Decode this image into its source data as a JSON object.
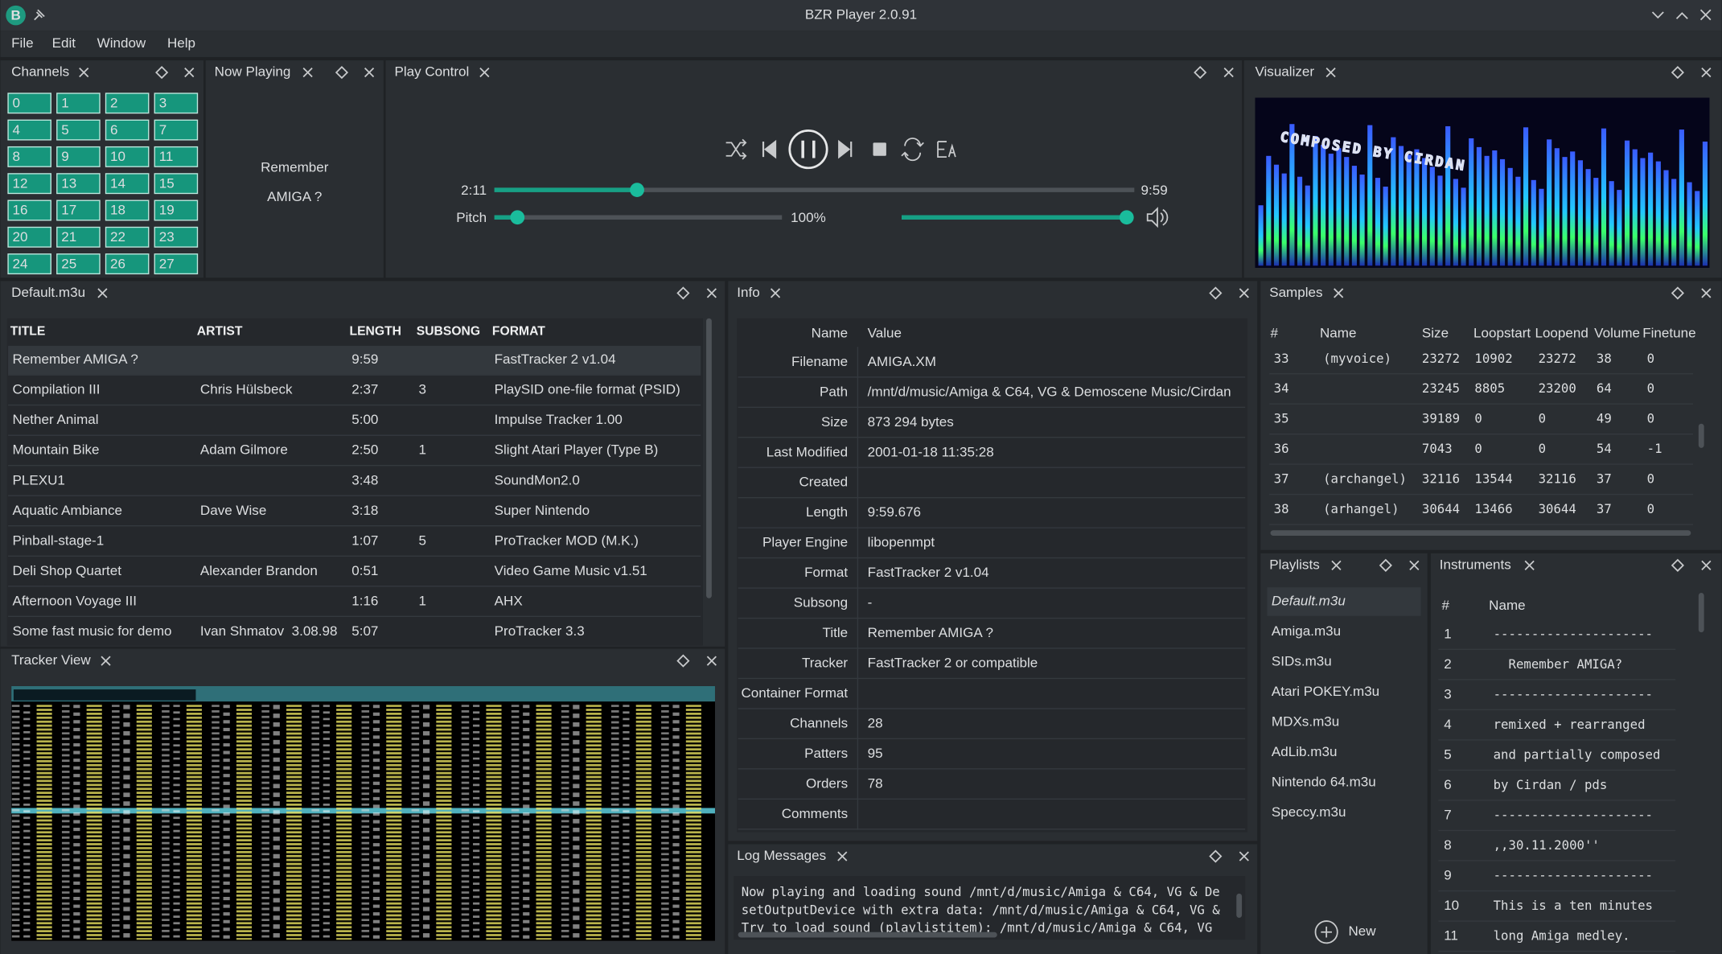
{
  "window": {
    "logo": "B",
    "title": "BZR Player 2.0.91"
  },
  "menu": [
    "File",
    "Edit",
    "Window",
    "Help"
  ],
  "channels": {
    "title": "Channels",
    "buttons": [
      "0",
      "1",
      "2",
      "3",
      "4",
      "5",
      "6",
      "7",
      "8",
      "9",
      "10",
      "11",
      "12",
      "13",
      "14",
      "15",
      "16",
      "17",
      "18",
      "19",
      "20",
      "21",
      "22",
      "23",
      "24",
      "25",
      "26",
      "27"
    ]
  },
  "now_playing": {
    "title": "Now Playing",
    "lines": [
      "Remember",
      "AMIGA ?"
    ]
  },
  "play_control": {
    "title": "Play Control",
    "elapsed": "2:11",
    "total": "9:59",
    "pitch_label": "Pitch",
    "pitch": "100%"
  },
  "visualizer": {
    "title": "Visualizer",
    "text": "COMPOSED BY CIRDAN"
  },
  "playlist": {
    "title": "Default.m3u",
    "columns": [
      "TITLE",
      "ARTIST",
      "LENGTH",
      "SUBSONG",
      "FORMAT"
    ],
    "rows": [
      [
        "Remember AMIGA ?",
        null,
        "9:59",
        null,
        "FastTracker 2 v1.04"
      ],
      [
        "Compilation III",
        "Chris Hülsbeck",
        "2:37",
        "3",
        "PlaySID one-file format (PSID)"
      ],
      [
        "Nether Animal",
        null,
        "5:00",
        null,
        "Impulse Tracker 1.00"
      ],
      [
        "Mountain Bike",
        "Adam Gilmore",
        "2:50",
        "1",
        "Slight Atari Player (Type B)"
      ],
      [
        "PLEXU1",
        null,
        "3:48",
        null,
        "SoundMon2.0"
      ],
      [
        "Aquatic Ambiance",
        "Dave Wise",
        "3:18",
        null,
        "Super Nintendo"
      ],
      [
        "Pinball-stage-1",
        null,
        "1:07",
        "5",
        "ProTracker MOD (M.K.)"
      ],
      [
        "Deli Shop Quartet",
        "Alexander Brandon",
        "0:51",
        null,
        "Video Game Music v1.51"
      ],
      [
        "Afternoon Voyage III",
        null,
        "1:16",
        "1",
        "AHX"
      ],
      [
        "Some fast music for demo",
        "Ivan Shmatov  3.08.98",
        "5:07",
        null,
        "ProTracker 3.3"
      ]
    ]
  },
  "tracker": {
    "title": "Tracker View"
  },
  "info": {
    "title": "Info",
    "columns": [
      "Name",
      "Value"
    ],
    "rows": [
      [
        "Filename",
        "AMIGA.XM"
      ],
      [
        "Path",
        "/mnt/d/music/Amiga & C64, VG & Demoscene Music/Cirdan"
      ],
      [
        "Size",
        "873 294 bytes"
      ],
      [
        "Last Modified",
        "2001-01-18 11:35:28"
      ],
      [
        "Created",
        null
      ],
      [
        "Length",
        "9:59.676"
      ],
      [
        "Player Engine",
        "libopenmpt"
      ],
      [
        "Format",
        "FastTracker 2 v1.04"
      ],
      [
        "Subsong",
        "-"
      ],
      [
        "Title",
        "Remember AMIGA ?"
      ],
      [
        "Tracker",
        "FastTracker 2 or compatible"
      ],
      [
        "Container Format",
        null
      ],
      [
        "Channels",
        "28"
      ],
      [
        "Patters",
        "95"
      ],
      [
        "Orders",
        "78"
      ],
      [
        "Comments",
        null
      ]
    ]
  },
  "log": {
    "title": "Log Messages",
    "lines": [
      "Now playing and loading sound /mnt/d/music/Amiga & C64, VG & De",
      "setOutputDevice with extra data: /mnt/d/music/Amiga & C64, VG &",
      "Try to load sound (playlistitem): /mnt/d/music/Amiga & C64, VG"
    ]
  },
  "samples": {
    "title": "Samples",
    "columns": [
      "#",
      "Name",
      "Size",
      "Loopstart",
      "Loopend",
      "Volume",
      "Finetune"
    ],
    "rows": [
      [
        "33",
        "(myvoice)",
        "23272",
        "10902",
        "23272",
        "38",
        "0"
      ],
      [
        "34",
        null,
        "23245",
        "8805",
        "23200",
        "64",
        "0"
      ],
      [
        "35",
        null,
        "39189",
        "0",
        "0",
        "49",
        "0"
      ],
      [
        "36",
        null,
        "7043",
        "0",
        "0",
        "54",
        "-1"
      ],
      [
        "37",
        "(archangel)",
        "32116",
        "13544",
        "32116",
        "37",
        "0"
      ],
      [
        "38",
        "(arhangel)",
        "30644",
        "13466",
        "30644",
        "37",
        "0"
      ]
    ]
  },
  "playlists": {
    "title": "Playlists",
    "items": [
      "Default.m3u",
      "Amiga.m3u",
      "SIDs.m3u",
      "Atari POKEY.m3u",
      "MDXs.m3u",
      "AdLib.m3u",
      "Nintendo 64.m3u",
      "Speccy.m3u"
    ],
    "new": "New"
  },
  "instruments": {
    "title": "Instruments",
    "columns": [
      "#",
      "Name"
    ],
    "rows": [
      [
        "1",
        "---------------------"
      ],
      [
        "2",
        "  Remember AMIGA?"
      ],
      [
        "3",
        "---------------------"
      ],
      [
        "4",
        "remixed + rearranged"
      ],
      [
        "5",
        "and partially composed"
      ],
      [
        "6",
        "by Cirdan / pds"
      ],
      [
        "7",
        "---------------------"
      ],
      [
        "8",
        ",,30.11.2000''"
      ],
      [
        "9",
        "---------------------"
      ],
      [
        "10",
        "This is a ten minutes"
      ],
      [
        "11",
        "long Amiga medley."
      ]
    ]
  }
}
